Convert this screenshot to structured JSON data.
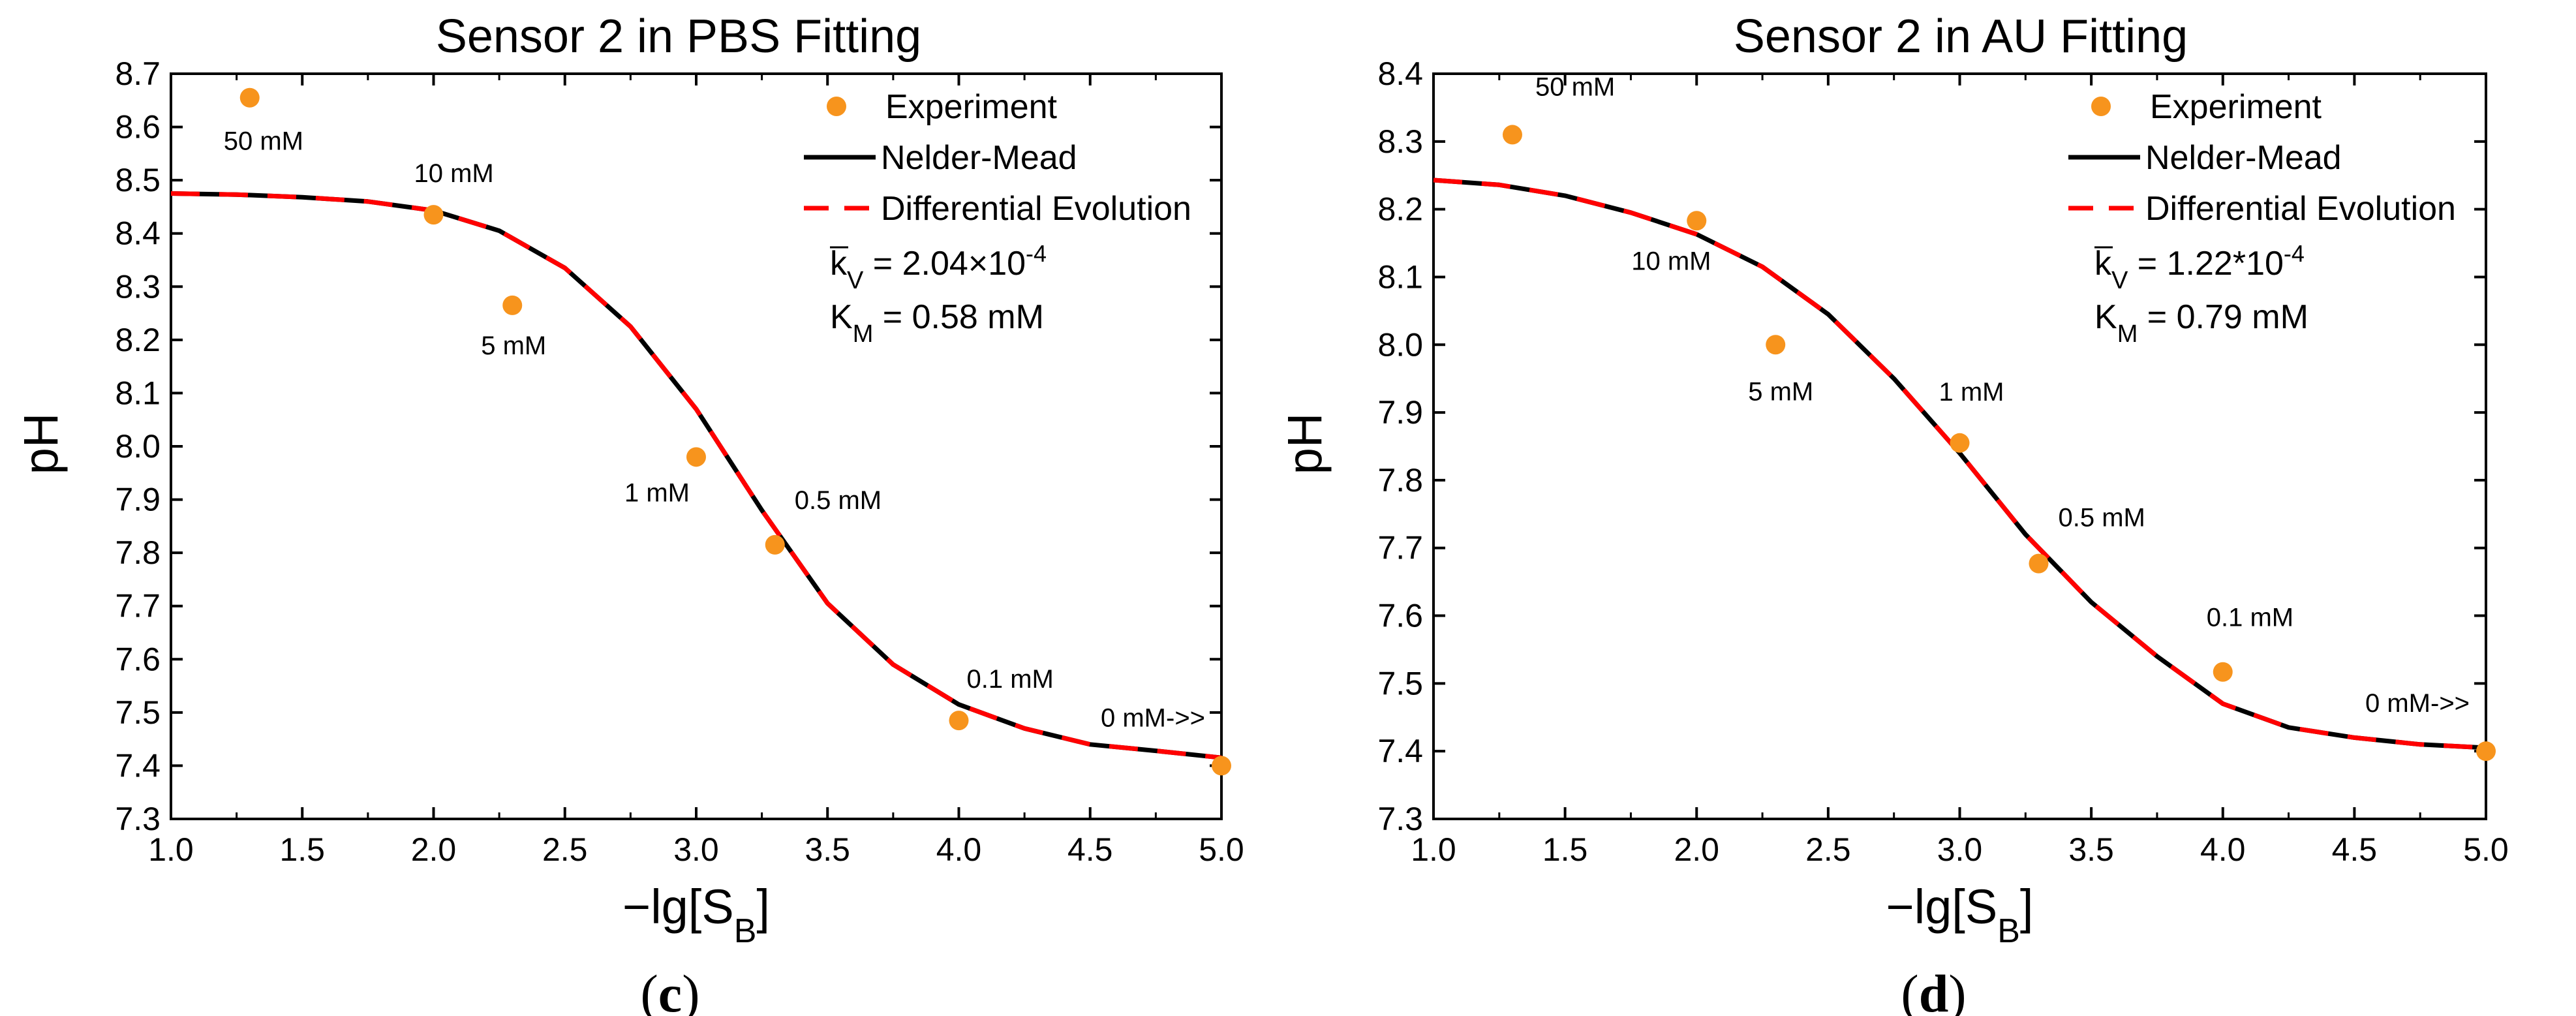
{
  "chart_data": [
    {
      "type": "scatter",
      "panel_label": "c",
      "title": "Sensor 2 in PBS Fitting",
      "xlabel_main": "−lg[S",
      "xlabel_sub": "B",
      "xlabel_end": "]",
      "ylabel": "pH",
      "xlim": [
        1.0,
        5.0
      ],
      "ylim": [
        7.3,
        8.7
      ],
      "xticks": [
        "1.0",
        "1.5",
        "2.0",
        "2.5",
        "3.0",
        "3.5",
        "4.0",
        "4.5",
        "5.0"
      ],
      "yticks": [
        "7.3",
        "7.4",
        "7.5",
        "7.6",
        "7.7",
        "7.8",
        "7.9",
        "8.0",
        "8.1",
        "8.2",
        "8.3",
        "8.4",
        "8.5",
        "8.6",
        "8.7"
      ],
      "legend": {
        "experiment": "Experiment",
        "nelder_mead": "Nelder-Mead",
        "diff_evo": "Differential Evolution",
        "kv_lead": "= 2.04×10",
        "kv_exp": "-4",
        "km_lead": "= 0.58 mM"
      },
      "series": [
        {
          "name": "Experiment",
          "color": "#f7941d",
          "points": [
            {
              "x": 1.3,
              "y": 8.655,
              "label": "50 mM"
            },
            {
              "x": 2.0,
              "y": 8.435,
              "label": "10 mM"
            },
            {
              "x": 2.3,
              "y": 8.265,
              "label": "5 mM"
            },
            {
              "x": 3.0,
              "y": 7.98,
              "label": "1 mM"
            },
            {
              "x": 3.3,
              "y": 7.815,
              "label": "0.5 mM"
            },
            {
              "x": 4.0,
              "y": 7.485,
              "label": "0.1 mM"
            },
            {
              "x": 5.0,
              "y": 7.4,
              "label": "0 mM->>"
            }
          ]
        },
        {
          "name": "Nelder-Mead",
          "color": "#000000",
          "x": [
            1.0,
            1.25,
            1.5,
            1.75,
            2.0,
            2.25,
            2.5,
            2.75,
            3.0,
            3.25,
            3.5,
            3.75,
            4.0,
            4.25,
            4.5,
            4.75,
            5.0
          ],
          "y": [
            8.475,
            8.473,
            8.468,
            8.46,
            8.443,
            8.405,
            8.335,
            8.225,
            8.07,
            7.88,
            7.705,
            7.59,
            7.515,
            7.47,
            7.44,
            7.428,
            7.415
          ]
        },
        {
          "name": "Differential Evolution",
          "color": "#ff0000",
          "x": [
            1.0,
            1.25,
            1.5,
            1.75,
            2.0,
            2.25,
            2.5,
            2.75,
            3.0,
            3.25,
            3.5,
            3.75,
            4.0,
            4.25,
            4.5,
            4.75,
            5.0
          ],
          "y": [
            8.475,
            8.473,
            8.468,
            8.46,
            8.443,
            8.405,
            8.335,
            8.225,
            8.07,
            7.88,
            7.705,
            7.59,
            7.515,
            7.47,
            7.44,
            7.428,
            7.415
          ]
        }
      ]
    },
    {
      "type": "scatter",
      "panel_label": "d",
      "title": "Sensor 2 in AU Fitting",
      "xlabel_main": "−lg[S",
      "xlabel_sub": "B",
      "xlabel_end": "]",
      "ylabel": "pH",
      "xlim": [
        1.0,
        5.0
      ],
      "ylim": [
        7.3,
        8.4
      ],
      "xticks": [
        "1.0",
        "1.5",
        "2.0",
        "2.5",
        "3.0",
        "3.5",
        "4.0",
        "4.5",
        "5.0"
      ],
      "yticks": [
        "7.3",
        "7.4",
        "7.5",
        "7.6",
        "7.7",
        "7.8",
        "7.9",
        "8.0",
        "8.1",
        "8.2",
        "8.3",
        "8.4"
      ],
      "legend": {
        "experiment": "Experiment",
        "nelder_mead": "Nelder-Mead",
        "diff_evo": "Differential Evolution",
        "kv_lead": "= 1.22*10",
        "kv_exp": "-4",
        "km_lead": "= 0.79 mM"
      },
      "series": [
        {
          "name": "Experiment",
          "color": "#f7941d",
          "points": [
            {
              "x": 1.3,
              "y": 8.31,
              "label": "50 mM"
            },
            {
              "x": 2.0,
              "y": 8.183,
              "label": "10 mM"
            },
            {
              "x": 2.3,
              "y": 8.0,
              "label": "5 mM"
            },
            {
              "x": 3.0,
              "y": 7.855,
              "label": "1 mM"
            },
            {
              "x": 3.3,
              "y": 7.677,
              "label": "0.5 mM"
            },
            {
              "x": 4.0,
              "y": 7.517,
              "label": "0.1 mM"
            },
            {
              "x": 5.0,
              "y": 7.4,
              "label": "0 mM->>"
            }
          ]
        },
        {
          "name": "Nelder-Mead",
          "color": "#000000",
          "x": [
            1.0,
            1.25,
            1.5,
            1.75,
            2.0,
            2.25,
            2.5,
            2.75,
            3.0,
            3.25,
            3.5,
            3.75,
            4.0,
            4.25,
            4.5,
            4.75,
            5.0
          ],
          "y": [
            8.243,
            8.236,
            8.22,
            8.195,
            8.163,
            8.115,
            8.045,
            7.95,
            7.84,
            7.72,
            7.62,
            7.54,
            7.47,
            7.435,
            7.42,
            7.41,
            7.405
          ]
        },
        {
          "name": "Differential Evolution",
          "color": "#ff0000",
          "x": [
            1.0,
            1.25,
            1.5,
            1.75,
            2.0,
            2.25,
            2.5,
            2.75,
            3.0,
            3.25,
            3.5,
            3.75,
            4.0,
            4.25,
            4.5,
            4.75,
            5.0
          ],
          "y": [
            8.243,
            8.236,
            8.22,
            8.195,
            8.163,
            8.115,
            8.045,
            7.95,
            7.84,
            7.72,
            7.62,
            7.54,
            7.47,
            7.435,
            7.42,
            7.41,
            7.405
          ]
        }
      ]
    }
  ]
}
